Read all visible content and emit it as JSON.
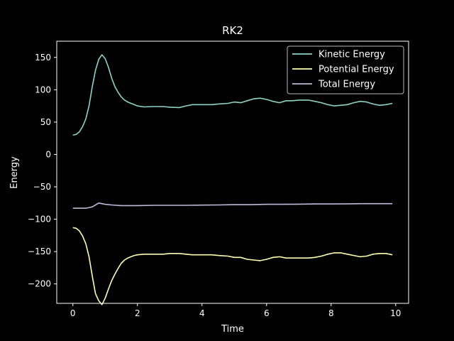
{
  "chart_data": {
    "type": "line",
    "title": "RK2",
    "xlabel": "Time",
    "ylabel": "Energy",
    "xlim": [
      -0.5,
      10.4
    ],
    "ylim": [
      -230,
      175
    ],
    "xticks": [
      0,
      2,
      4,
      6,
      8,
      10
    ],
    "yticks": [
      -200,
      -150,
      -100,
      -50,
      0,
      50,
      100,
      150
    ],
    "grid": false,
    "legend_position": "top-right",
    "background": "#000000",
    "series": [
      {
        "name": "Kinetic Energy",
        "color": "#8dd3c7",
        "points": [
          [
            0,
            30
          ],
          [
            0.1,
            31
          ],
          [
            0.2,
            35
          ],
          [
            0.3,
            43
          ],
          [
            0.4,
            55
          ],
          [
            0.5,
            75
          ],
          [
            0.6,
            105
          ],
          [
            0.7,
            130
          ],
          [
            0.8,
            147
          ],
          [
            0.9,
            154
          ],
          [
            1.0,
            148
          ],
          [
            1.1,
            135
          ],
          [
            1.2,
            118
          ],
          [
            1.3,
            105
          ],
          [
            1.4,
            96
          ],
          [
            1.5,
            89
          ],
          [
            1.6,
            84
          ],
          [
            1.7,
            81
          ],
          [
            1.8,
            79
          ],
          [
            1.9,
            77
          ],
          [
            2.0,
            75
          ],
          [
            2.2,
            73.5
          ],
          [
            2.5,
            74
          ],
          [
            2.8,
            74
          ],
          [
            3.0,
            73
          ],
          [
            3.3,
            72.5
          ],
          [
            3.5,
            75
          ],
          [
            3.7,
            77
          ],
          [
            4.0,
            77
          ],
          [
            4.3,
            77
          ],
          [
            4.5,
            78
          ],
          [
            4.8,
            79
          ],
          [
            5.0,
            81
          ],
          [
            5.2,
            80
          ],
          [
            5.4,
            83
          ],
          [
            5.6,
            86
          ],
          [
            5.8,
            87
          ],
          [
            6.0,
            85
          ],
          [
            6.2,
            82
          ],
          [
            6.4,
            80
          ],
          [
            6.6,
            83
          ],
          [
            6.8,
            83
          ],
          [
            7.0,
            84
          ],
          [
            7.3,
            84
          ],
          [
            7.5,
            82
          ],
          [
            7.7,
            80
          ],
          [
            7.9,
            77
          ],
          [
            8.1,
            75
          ],
          [
            8.3,
            76
          ],
          [
            8.5,
            77
          ],
          [
            8.7,
            80
          ],
          [
            8.9,
            82
          ],
          [
            9.1,
            81
          ],
          [
            9.3,
            78
          ],
          [
            9.5,
            76
          ],
          [
            9.7,
            77
          ],
          [
            9.9,
            79
          ]
        ]
      },
      {
        "name": "Potential Energy",
        "color": "#ffffb3",
        "points": [
          [
            0,
            -113
          ],
          [
            0.1,
            -114
          ],
          [
            0.2,
            -118
          ],
          [
            0.3,
            -126
          ],
          [
            0.4,
            -138
          ],
          [
            0.5,
            -158
          ],
          [
            0.6,
            -188
          ],
          [
            0.7,
            -215
          ],
          [
            0.8,
            -226
          ],
          [
            0.9,
            -232
          ],
          [
            1.0,
            -222
          ],
          [
            1.1,
            -208
          ],
          [
            1.2,
            -195
          ],
          [
            1.3,
            -185
          ],
          [
            1.4,
            -176
          ],
          [
            1.5,
            -168
          ],
          [
            1.6,
            -163
          ],
          [
            1.7,
            -160
          ],
          [
            1.8,
            -158
          ],
          [
            1.9,
            -156
          ],
          [
            2.0,
            -155
          ],
          [
            2.2,
            -154
          ],
          [
            2.5,
            -154
          ],
          [
            2.8,
            -154
          ],
          [
            3.0,
            -153
          ],
          [
            3.3,
            -153
          ],
          [
            3.5,
            -154
          ],
          [
            3.7,
            -155
          ],
          [
            4.0,
            -155
          ],
          [
            4.3,
            -155
          ],
          [
            4.5,
            -156
          ],
          [
            4.8,
            -157
          ],
          [
            5.0,
            -159
          ],
          [
            5.2,
            -159
          ],
          [
            5.4,
            -162
          ],
          [
            5.6,
            -163
          ],
          [
            5.8,
            -164
          ],
          [
            6.0,
            -162
          ],
          [
            6.2,
            -159
          ],
          [
            6.4,
            -158
          ],
          [
            6.6,
            -160
          ],
          [
            6.8,
            -160
          ],
          [
            7.0,
            -160
          ],
          [
            7.3,
            -160
          ],
          [
            7.5,
            -159
          ],
          [
            7.7,
            -157
          ],
          [
            7.9,
            -154
          ],
          [
            8.1,
            -152
          ],
          [
            8.3,
            -152
          ],
          [
            8.5,
            -154
          ],
          [
            8.7,
            -156
          ],
          [
            8.9,
            -158
          ],
          [
            9.1,
            -157
          ],
          [
            9.3,
            -154
          ],
          [
            9.5,
            -153
          ],
          [
            9.7,
            -153
          ],
          [
            9.9,
            -155
          ]
        ]
      },
      {
        "name": "Total Energy",
        "color": "#bebada",
        "points": [
          [
            0,
            -83
          ],
          [
            0.2,
            -83
          ],
          [
            0.4,
            -83
          ],
          [
            0.6,
            -81
          ],
          [
            0.8,
            -75
          ],
          [
            0.9,
            -76
          ],
          [
            1.0,
            -77
          ],
          [
            1.2,
            -78
          ],
          [
            1.5,
            -79
          ],
          [
            1.8,
            -79
          ],
          [
            2.0,
            -79
          ],
          [
            2.5,
            -78.5
          ],
          [
            3.0,
            -78.5
          ],
          [
            3.5,
            -78.5
          ],
          [
            4.0,
            -78.2
          ],
          [
            4.5,
            -78
          ],
          [
            5.0,
            -77.5
          ],
          [
            5.5,
            -77.5
          ],
          [
            6.0,
            -77
          ],
          [
            6.5,
            -77
          ],
          [
            7.0,
            -76.8
          ],
          [
            7.5,
            -76.5
          ],
          [
            8.0,
            -76.5
          ],
          [
            8.5,
            -76.2
          ],
          [
            9.0,
            -76
          ],
          [
            9.5,
            -76
          ],
          [
            9.9,
            -76
          ]
        ]
      }
    ]
  }
}
